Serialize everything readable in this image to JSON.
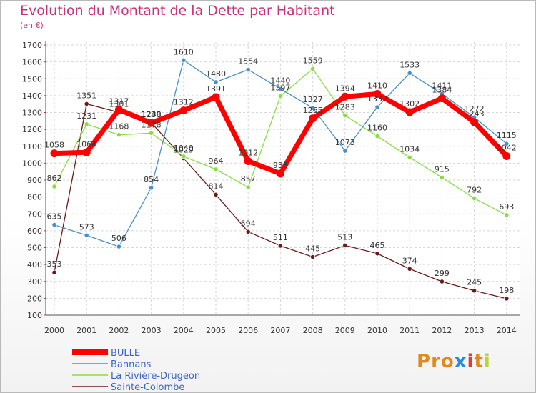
{
  "title": "Evolution du Montant de la Dette par Habitant",
  "subtitle": "(en €)",
  "logo_text": "Proxiti",
  "chart_data": {
    "type": "line",
    "title": "Evolution du Montant de la Dette par Habitant",
    "subtitle": "(en €)",
    "x": [
      "2000",
      "2001",
      "2002",
      "2003",
      "2004",
      "2005",
      "2006",
      "2007",
      "2008",
      "2009",
      "2010",
      "2011",
      "2012",
      "2013",
      "2014"
    ],
    "y_ticks": [
      100,
      200,
      300,
      400,
      500,
      600,
      700,
      800,
      900,
      1000,
      1100,
      1200,
      1300,
      1400,
      1500,
      1600,
      1700
    ],
    "ylim": [
      100,
      1700
    ],
    "grid": true,
    "legend_position": "bottom-left",
    "series": [
      {
        "name": "BULLE",
        "color": "#ff0000",
        "values": [
          1058,
          1064,
          1317,
          1238,
          1312,
          1391,
          1012,
          938,
          1265,
          1394,
          1410,
          1302,
          1384,
          1243,
          1042
        ]
      },
      {
        "name": "Bannans",
        "color": "#4a90c8",
        "values": [
          635,
          573,
          506,
          854,
          1610,
          1480,
          1554,
          1440,
          1327,
          1073,
          1332,
          1533,
          1411,
          1272,
          1115
        ]
      },
      {
        "name": "La Rivière-Drugeon",
        "color": "#88dd44",
        "values": [
          862,
          1231,
          1168,
          1178,
          1040,
          964,
          857,
          1397,
          1559,
          1283,
          1160,
          1034,
          915,
          792,
          693
        ]
      },
      {
        "name": "Sainte-Colombe",
        "color": "#6b1a1a",
        "values": [
          353,
          1351,
          1301,
          1240,
          1029,
          814,
          594,
          511,
          445,
          513,
          465,
          374,
          299,
          245,
          198
        ]
      }
    ]
  }
}
